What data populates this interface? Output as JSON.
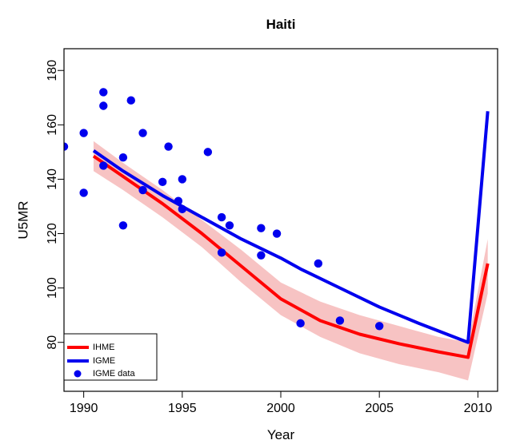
{
  "chart_data": {
    "type": "line",
    "title": "Haiti",
    "xlabel": "Year",
    "ylabel": "U5MR",
    "xlim": [
      1989,
      2011
    ],
    "ylim": [
      62,
      188
    ],
    "xticks": [
      1990,
      1995,
      2000,
      2005,
      2010
    ],
    "yticks": [
      80,
      100,
      120,
      140,
      160,
      180
    ],
    "grid": false,
    "legend_position": "bottom-left",
    "colors": {
      "ihme": "#ff0000",
      "igme": "#0000ee",
      "band": "#f6b8b8",
      "points": "#0000ee"
    },
    "series": [
      {
        "name": "IHME",
        "kind": "line",
        "x": [
          1990.5,
          1992,
          1994,
          1996,
          1998,
          2000,
          2002,
          2004,
          2006,
          2008,
          2009.5,
          2010.5
        ],
        "y": [
          148.5,
          141,
          131,
          120,
          108,
          96,
          88,
          83,
          79.5,
          76.5,
          74.5,
          109
        ]
      },
      {
        "name": "IGME",
        "kind": "line",
        "x": [
          1990.5,
          1992,
          1994,
          1996,
          1998,
          2000,
          2001,
          2003,
          2005,
          2007,
          2009.5,
          2010.5
        ],
        "y": [
          150.5,
          143,
          134,
          126,
          118,
          111,
          107,
          100,
          93,
          87,
          80,
          165
        ]
      },
      {
        "name": "IGME data",
        "kind": "points",
        "x": [
          1989,
          1990,
          1990,
          1991,
          1991,
          1991,
          1992,
          1992,
          1992.4,
          1993,
          1993,
          1994,
          1994.3,
          1994.8,
          1995,
          1995,
          1996.3,
          1997,
          1997,
          1997.4,
          1999,
          1999,
          1999.8,
          2001,
          2001.9,
          2003,
          2005
        ],
        "y": [
          152,
          157,
          135,
          172,
          167,
          145,
          148,
          123,
          169,
          157,
          136,
          139,
          152,
          132,
          140,
          129,
          150,
          126,
          113,
          123,
          122,
          112,
          120,
          87,
          109,
          88,
          86
        ]
      }
    ],
    "band": {
      "name": "IHME uncertainty",
      "x": [
        1990.5,
        1992,
        1994,
        1996,
        1998,
        2000,
        2002,
        2004,
        2006,
        2008,
        2009.5,
        2010.5
      ],
      "upper": [
        154,
        146,
        136,
        125,
        114,
        102,
        95,
        90,
        86,
        82,
        80,
        118
      ],
      "lower": [
        143,
        136,
        126,
        115,
        102,
        90,
        82,
        76,
        72,
        69,
        66,
        98
      ]
    }
  }
}
